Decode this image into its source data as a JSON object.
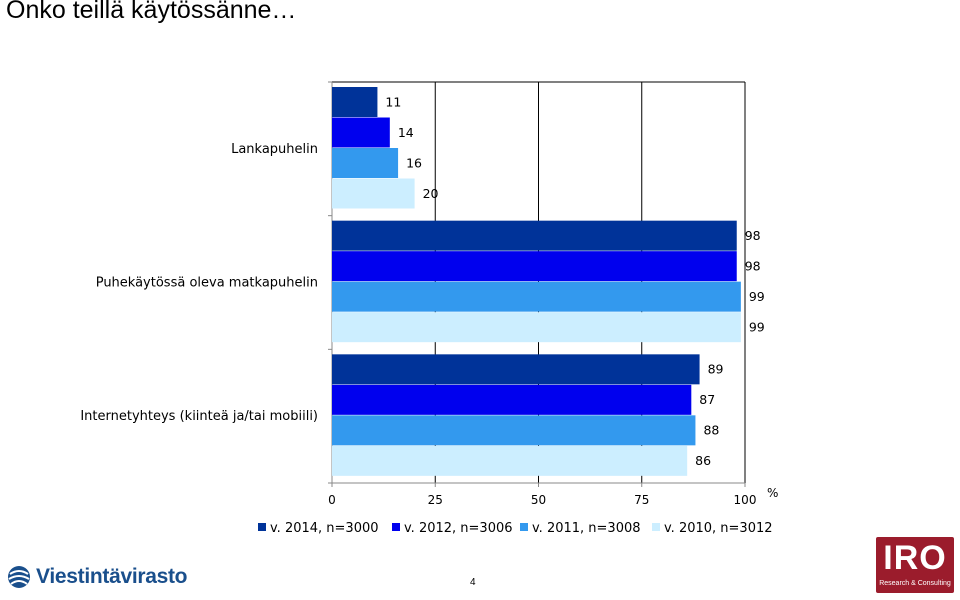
{
  "title": "Onko teillä käytössänne…",
  "chart_data": {
    "type": "bar",
    "orientation": "horizontal",
    "categories": [
      "Lankapuhelin",
      "Puhekäytössä oleva matkapuhelin",
      "Internetyhteys (kiinteä ja/tai mobiili)"
    ],
    "series": [
      {
        "name": "v. 2014, n=3000",
        "color": "#003399",
        "values": [
          11,
          98,
          89
        ]
      },
      {
        "name": "v. 2012, n=3006",
        "color": "#0000ee",
        "values": [
          14,
          98,
          87
        ]
      },
      {
        "name": "v. 2011, n=3008",
        "color": "#3399ee",
        "values": [
          16,
          99,
          88
        ]
      },
      {
        "name": "v. 2010, n=3012",
        "color": "#cceeff",
        "values": [
          20,
          99,
          86
        ]
      }
    ],
    "xlim": [
      0,
      100
    ],
    "xticks": [
      0,
      25,
      50,
      75,
      100
    ],
    "xlabel": "%",
    "grid": true,
    "legend": "bottom"
  },
  "footer": {
    "logo_left_text": "Viestintävirasto",
    "page_number": "4",
    "logo_right_text": "IRO",
    "logo_right_subtext": "Research & Consulting"
  },
  "colors": {
    "logo_left": "#1a4f8c",
    "logo_right": "#9b1c2c"
  }
}
